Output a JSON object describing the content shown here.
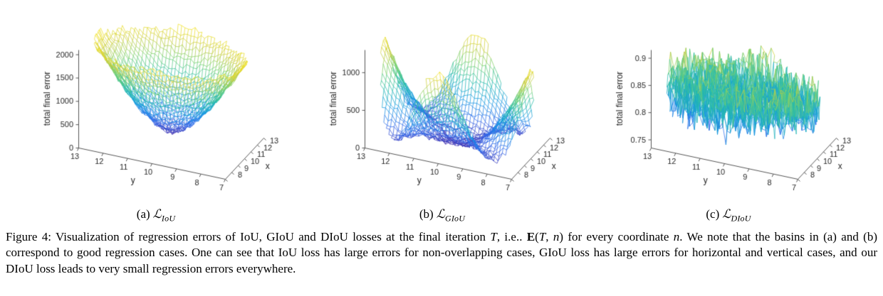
{
  "figure": {
    "caption_segments": [
      {
        "t": "Figure 4: Visualization of regression errors of IoU, GIoU and DIoU losses at the final iteration ",
        "s": "n"
      },
      {
        "t": "T",
        "s": "i"
      },
      {
        "t": ", i.e.. ",
        "s": "n"
      },
      {
        "t": "E",
        "s": "b"
      },
      {
        "t": "(",
        "s": "n"
      },
      {
        "t": "T",
        "s": "i"
      },
      {
        "t": ", ",
        "s": "n"
      },
      {
        "t": "n",
        "s": "i"
      },
      {
        "t": ") for every coordinate ",
        "s": "n"
      },
      {
        "t": "n",
        "s": "i"
      },
      {
        "t": ". We note that the basins in (a) and (b) correspond to good regression cases. One can see that IoU loss has large errors for non-overlapping cases, GIoU loss has large errors for horizontal and vertical cases, and our DIoU loss leads to very small regression errors everywhere.",
        "s": "n"
      }
    ]
  },
  "chart_data": [
    {
      "type": "surface",
      "caption_prefix": "(a)",
      "caption_symbol": "ℒ",
      "caption_sub": "IoU",
      "xlabel": "x",
      "ylabel": "y",
      "zlabel": "total final error",
      "x_range": [
        7,
        13
      ],
      "y_range": [
        7,
        13
      ],
      "x_ticks": [
        7,
        8,
        9,
        10,
        11,
        12,
        13
      ],
      "y_ticks": [
        7,
        8,
        9,
        10,
        11,
        12,
        13
      ],
      "z_ticks": [
        0,
        500,
        1000,
        1500,
        2000
      ],
      "zlim": [
        0,
        2100
      ],
      "noise": 55,
      "colormap": "parula",
      "domain": {
        "center": [
          10,
          10
        ],
        "radius": 3
      },
      "z_grid": [
        [
          2000,
          2000,
          2000,
          2000,
          2000,
          2000,
          2000,
          2000,
          2000,
          2000,
          2000,
          2000,
          2000
        ],
        [
          2000,
          2000,
          2000,
          1924,
          1730,
          1611,
          1569,
          1611,
          1730,
          1924,
          2000,
          2000,
          2000
        ],
        [
          2000,
          2000,
          1848,
          1569,
          1358,
          1226,
          1180,
          1226,
          1358,
          1569,
          1848,
          2000,
          2000
        ],
        [
          2000,
          1924,
          1569,
          1270,
          1039,
          889,
          836,
          889,
          1039,
          1270,
          1569,
          1924,
          2000
        ],
        [
          2000,
          1730,
          1358,
          1039,
          783,
          610,
          546,
          610,
          783,
          1039,
          1358,
          1730,
          2000
        ],
        [
          2000,
          1611,
          1226,
          889,
          610,
          406,
          322,
          406,
          610,
          889,
          1226,
          1611,
          2000
        ],
        [
          2000,
          1569,
          1180,
          836,
          546,
          322,
          200,
          322,
          546,
          836,
          1180,
          1569,
          2000
        ],
        [
          2000,
          1611,
          1226,
          889,
          610,
          406,
          322,
          406,
          610,
          889,
          1226,
          1611,
          2000
        ],
        [
          2000,
          1730,
          1358,
          1039,
          783,
          610,
          546,
          610,
          783,
          1039,
          1358,
          1730,
          2000
        ],
        [
          2000,
          1924,
          1569,
          1270,
          1039,
          889,
          836,
          889,
          1039,
          1270,
          1569,
          1924,
          2000
        ],
        [
          2000,
          2000,
          1848,
          1569,
          1358,
          1226,
          1180,
          1226,
          1358,
          1569,
          1848,
          2000,
          2000
        ],
        [
          2000,
          2000,
          2000,
          1924,
          1730,
          1611,
          1569,
          1611,
          1730,
          1924,
          2000,
          2000,
          2000
        ],
        [
          2000,
          2000,
          2000,
          2000,
          2000,
          2000,
          2000,
          2000,
          2000,
          2000,
          2000,
          2000,
          2000
        ]
      ]
    },
    {
      "type": "surface",
      "caption_prefix": "(b)",
      "caption_symbol": "ℒ",
      "caption_sub": "GIoU",
      "xlabel": "x",
      "ylabel": "y",
      "zlabel": "total final error",
      "x_range": [
        7,
        13
      ],
      "y_range": [
        7,
        13
      ],
      "x_ticks": [
        7,
        8,
        9,
        10,
        11,
        12,
        13
      ],
      "y_ticks": [
        7,
        8,
        9,
        10,
        11,
        12,
        13
      ],
      "z_ticks": [
        0,
        500,
        1000
      ],
      "zlim": [
        0,
        1300
      ],
      "noise": 38,
      "colormap": "parula",
      "domain": {
        "center": [
          10,
          10
        ],
        "radius": 3
      },
      "z_grid": [
        [
          13,
          53,
          162,
          390,
          728,
          1059,
          1200,
          1059,
          728,
          390,
          162,
          53,
          13
        ],
        [
          53,
          37,
          113,
          271,
          505,
          735,
          833,
          735,
          505,
          271,
          113,
          37,
          53
        ],
        [
          162,
          113,
          72,
          173,
          323,
          471,
          533,
          471,
          323,
          173,
          72,
          113,
          162
        ],
        [
          390,
          271,
          173,
          97,
          182,
          265,
          300,
          265,
          182,
          97,
          173,
          271,
          390
        ],
        [
          728,
          505,
          323,
          182,
          81,
          118,
          133,
          118,
          81,
          182,
          323,
          505,
          728
        ],
        [
          1059,
          735,
          471,
          265,
          118,
          29,
          33,
          29,
          118,
          265,
          471,
          735,
          1059
        ],
        [
          1200,
          833,
          533,
          300,
          133,
          33,
          0,
          33,
          133,
          300,
          533,
          833,
          1200
        ],
        [
          1059,
          735,
          471,
          265,
          118,
          29,
          33,
          29,
          118,
          265,
          471,
          735,
          1059
        ],
        [
          728,
          505,
          323,
          182,
          81,
          118,
          133,
          118,
          81,
          182,
          323,
          505,
          728
        ],
        [
          390,
          271,
          173,
          97,
          182,
          265,
          300,
          265,
          182,
          97,
          173,
          271,
          390
        ],
        [
          162,
          113,
          72,
          173,
          323,
          471,
          533,
          471,
          323,
          173,
          72,
          113,
          162
        ],
        [
          53,
          37,
          113,
          271,
          505,
          735,
          833,
          735,
          505,
          271,
          113,
          37,
          53
        ],
        [
          13,
          53,
          162,
          390,
          728,
          1059,
          1200,
          1059,
          728,
          390,
          162,
          53,
          13
        ]
      ]
    },
    {
      "type": "surface",
      "caption_prefix": "(c)",
      "caption_symbol": "ℒ",
      "caption_sub": "DIoU",
      "xlabel": "x",
      "ylabel": "y",
      "zlabel": "total final error",
      "x_range": [
        7,
        13
      ],
      "y_range": [
        7,
        13
      ],
      "x_ticks": [
        7,
        8,
        9,
        10,
        11,
        12,
        13
      ],
      "y_ticks": [
        7,
        8,
        9,
        10,
        11,
        12,
        13
      ],
      "z_ticks": [
        0.75,
        0.8,
        0.85,
        0.9
      ],
      "zlim": [
        0.735,
        0.915
      ],
      "noise": 0.04,
      "colormap": "parula",
      "domain": {
        "center": [
          10,
          10
        ],
        "radius": 3
      },
      "z_grid": [
        [
          0.82,
          0.8,
          0.84,
          0.81,
          0.83,
          0.85,
          0.8,
          0.83,
          0.81,
          0.84,
          0.8,
          0.82,
          0.83
        ],
        [
          0.8,
          0.84,
          0.81,
          0.83,
          0.85,
          0.8,
          0.83,
          0.81,
          0.84,
          0.8,
          0.82,
          0.83,
          0.82
        ],
        [
          0.84,
          0.81,
          0.83,
          0.85,
          0.8,
          0.83,
          0.81,
          0.84,
          0.8,
          0.82,
          0.83,
          0.82,
          0.8
        ],
        [
          0.81,
          0.83,
          0.85,
          0.8,
          0.83,
          0.81,
          0.84,
          0.8,
          0.82,
          0.83,
          0.82,
          0.8,
          0.84
        ],
        [
          0.83,
          0.85,
          0.8,
          0.83,
          0.81,
          0.84,
          0.8,
          0.82,
          0.83,
          0.82,
          0.8,
          0.84,
          0.81
        ],
        [
          0.85,
          0.8,
          0.83,
          0.81,
          0.84,
          0.8,
          0.82,
          0.83,
          0.82,
          0.8,
          0.84,
          0.81,
          0.83
        ],
        [
          0.8,
          0.83,
          0.81,
          0.84,
          0.8,
          0.82,
          0.83,
          0.82,
          0.8,
          0.84,
          0.81,
          0.83,
          0.85
        ],
        [
          0.83,
          0.81,
          0.84,
          0.8,
          0.82,
          0.83,
          0.82,
          0.8,
          0.84,
          0.81,
          0.83,
          0.85,
          0.8
        ],
        [
          0.81,
          0.84,
          0.8,
          0.82,
          0.83,
          0.82,
          0.8,
          0.84,
          0.81,
          0.83,
          0.85,
          0.8,
          0.83
        ],
        [
          0.84,
          0.8,
          0.82,
          0.83,
          0.82,
          0.8,
          0.84,
          0.81,
          0.83,
          0.85,
          0.8,
          0.83,
          0.81
        ],
        [
          0.8,
          0.82,
          0.83,
          0.82,
          0.8,
          0.84,
          0.81,
          0.83,
          0.85,
          0.8,
          0.83,
          0.81,
          0.84
        ],
        [
          0.82,
          0.83,
          0.82,
          0.8,
          0.84,
          0.81,
          0.83,
          0.85,
          0.8,
          0.83,
          0.81,
          0.84,
          0.8
        ],
        [
          0.83,
          0.82,
          0.8,
          0.84,
          0.81,
          0.83,
          0.85,
          0.8,
          0.83,
          0.81,
          0.84,
          0.8,
          0.82
        ]
      ]
    }
  ]
}
